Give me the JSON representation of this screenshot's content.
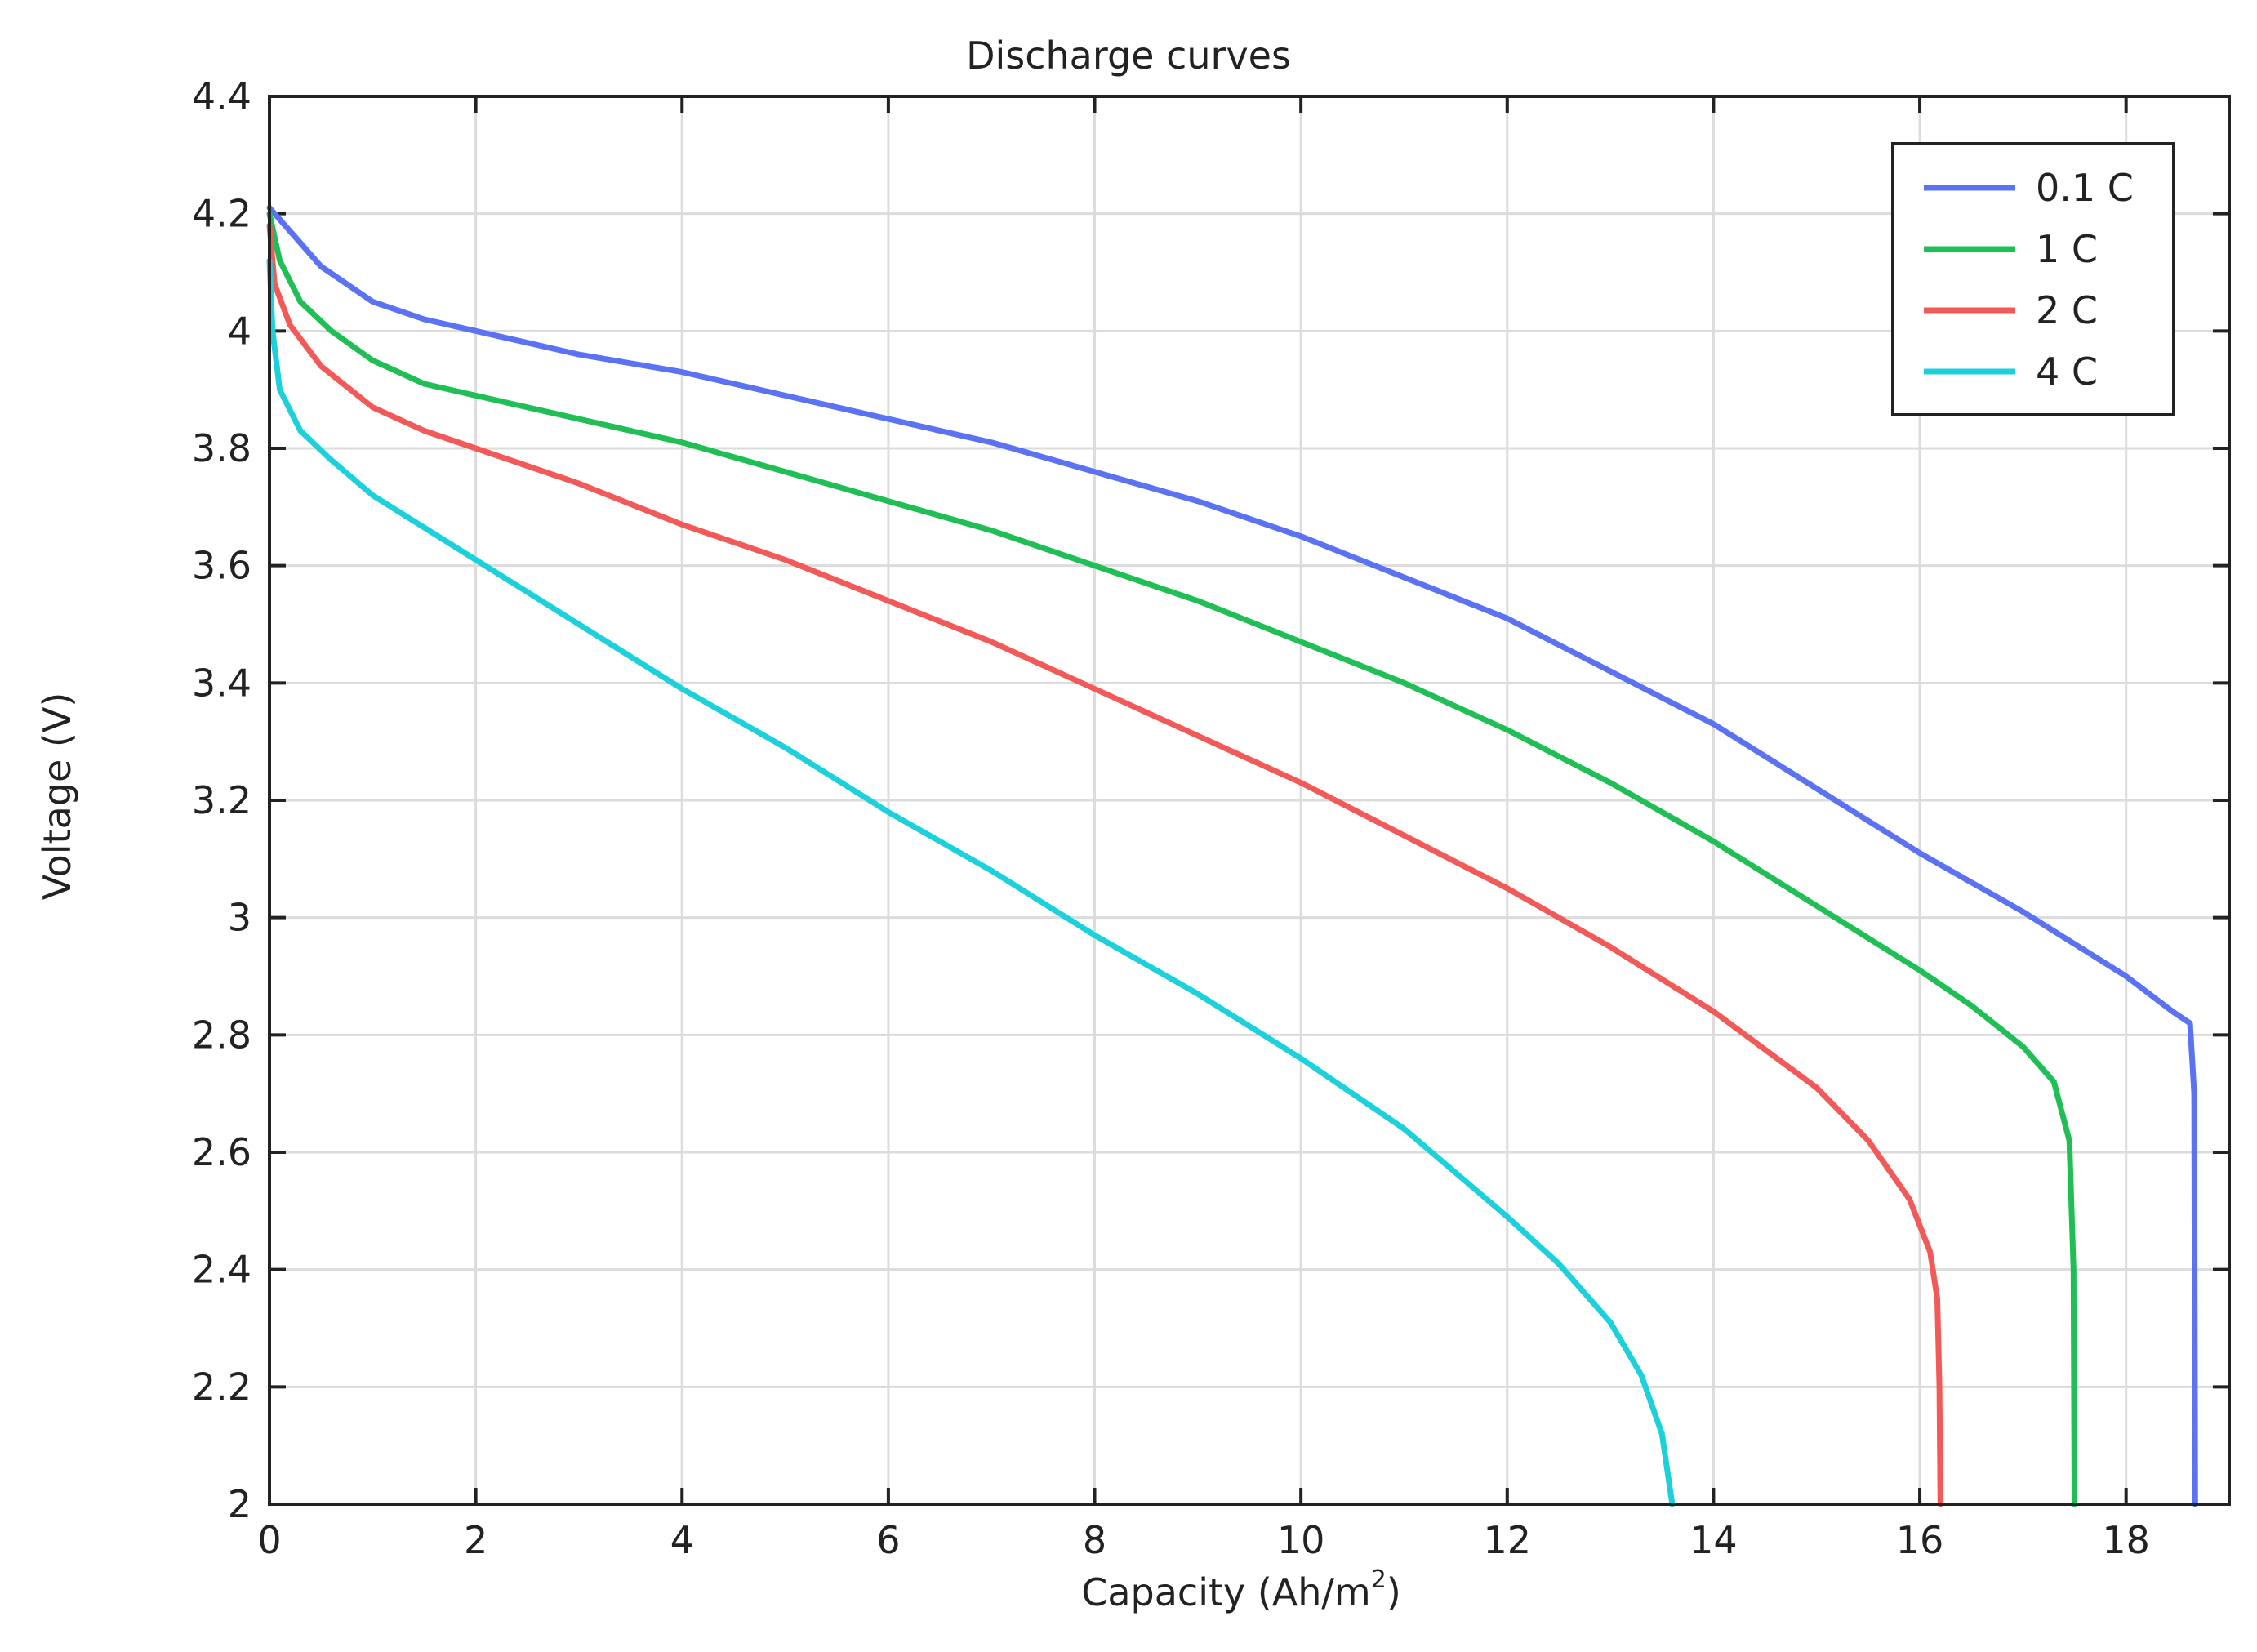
{
  "chart_data": {
    "type": "line",
    "title": "Discharge curves",
    "xlabel": {
      "text": "Capacity (Ah/m",
      "superscript": "2",
      "suffix": ")"
    },
    "ylabel": "Voltage (V)",
    "xlim": [
      0,
      19
    ],
    "ylim": [
      2,
      4.4
    ],
    "x_ticks": [
      0,
      2,
      4,
      6,
      8,
      10,
      12,
      14,
      16,
      18
    ],
    "x_tick_labels": [
      "0",
      "2",
      "4",
      "6",
      "8",
      "10",
      "12",
      "14",
      "16",
      "18"
    ],
    "y_ticks": [
      2,
      2.2,
      2.4,
      2.6,
      2.8,
      3,
      3.2,
      3.4,
      3.6,
      3.8,
      4,
      4.2,
      4.4
    ],
    "y_tick_labels": [
      "2",
      "2.2",
      "2.4",
      "2.6",
      "2.8",
      "3",
      "3.2",
      "3.4",
      "3.6",
      "3.8",
      "4",
      "4.2",
      "4.4"
    ],
    "grid": true,
    "legend_position": "top-right",
    "series": [
      {
        "name": "0.1 C",
        "color": "#5b73f2",
        "points": [
          [
            0,
            4.21
          ],
          [
            0.2,
            4.17
          ],
          [
            0.5,
            4.11
          ],
          [
            1,
            4.05
          ],
          [
            1.5,
            4.02
          ],
          [
            2,
            4.0
          ],
          [
            3,
            3.96
          ],
          [
            4,
            3.93
          ],
          [
            5,
            3.89
          ],
          [
            6,
            3.85
          ],
          [
            7,
            3.81
          ],
          [
            8,
            3.76
          ],
          [
            9,
            3.71
          ],
          [
            10,
            3.65
          ],
          [
            11,
            3.58
          ],
          [
            12,
            3.51
          ],
          [
            13,
            3.42
          ],
          [
            14,
            3.33
          ],
          [
            15,
            3.22
          ],
          [
            16,
            3.11
          ],
          [
            17,
            3.01
          ],
          [
            18,
            2.9
          ],
          [
            18.45,
            2.84
          ],
          [
            18.62,
            2.82
          ],
          [
            18.66,
            2.7
          ],
          [
            18.67,
            2.0
          ]
        ]
      },
      {
        "name": "1 C",
        "color": "#20bf55",
        "points": [
          [
            0,
            4.2
          ],
          [
            0.1,
            4.12
          ],
          [
            0.3,
            4.05
          ],
          [
            0.6,
            4.0
          ],
          [
            1,
            3.95
          ],
          [
            1.5,
            3.91
          ],
          [
            2,
            3.89
          ],
          [
            3,
            3.85
          ],
          [
            4,
            3.81
          ],
          [
            5,
            3.76
          ],
          [
            6,
            3.71
          ],
          [
            7,
            3.66
          ],
          [
            8,
            3.6
          ],
          [
            9,
            3.54
          ],
          [
            10,
            3.47
          ],
          [
            11,
            3.4
          ],
          [
            12,
            3.32
          ],
          [
            13,
            3.23
          ],
          [
            14,
            3.13
          ],
          [
            15,
            3.02
          ],
          [
            16,
            2.91
          ],
          [
            16.5,
            2.85
          ],
          [
            17,
            2.78
          ],
          [
            17.3,
            2.72
          ],
          [
            17.45,
            2.62
          ],
          [
            17.49,
            2.4
          ],
          [
            17.5,
            2.0
          ]
        ]
      },
      {
        "name": "2 C",
        "color": "#f25a5a",
        "points": [
          [
            0,
            4.18
          ],
          [
            0.05,
            4.08
          ],
          [
            0.2,
            4.01
          ],
          [
            0.5,
            3.94
          ],
          [
            1,
            3.87
          ],
          [
            1.5,
            3.83
          ],
          [
            2,
            3.8
          ],
          [
            3,
            3.74
          ],
          [
            4,
            3.67
          ],
          [
            5,
            3.61
          ],
          [
            6,
            3.54
          ],
          [
            7,
            3.47
          ],
          [
            8,
            3.39
          ],
          [
            9,
            3.31
          ],
          [
            10,
            3.23
          ],
          [
            11,
            3.14
          ],
          [
            12,
            3.05
          ],
          [
            13,
            2.95
          ],
          [
            14,
            2.84
          ],
          [
            15,
            2.71
          ],
          [
            15.5,
            2.62
          ],
          [
            15.9,
            2.52
          ],
          [
            16.1,
            2.43
          ],
          [
            16.17,
            2.35
          ],
          [
            16.19,
            2.2
          ],
          [
            16.2,
            2.0
          ]
        ]
      },
      {
        "name": "4 C",
        "color": "#1cd0dc",
        "points": [
          [
            0,
            4.12
          ],
          [
            0.03,
            4.0
          ],
          [
            0.1,
            3.9
          ],
          [
            0.3,
            3.83
          ],
          [
            0.6,
            3.78
          ],
          [
            1,
            3.72
          ],
          [
            2,
            3.61
          ],
          [
            3,
            3.5
          ],
          [
            4,
            3.39
          ],
          [
            5,
            3.29
          ],
          [
            6,
            3.18
          ],
          [
            7,
            3.08
          ],
          [
            8,
            2.97
          ],
          [
            9,
            2.87
          ],
          [
            10,
            2.76
          ],
          [
            11,
            2.64
          ],
          [
            12,
            2.49
          ],
          [
            12.5,
            2.41
          ],
          [
            13,
            2.31
          ],
          [
            13.3,
            2.22
          ],
          [
            13.5,
            2.12
          ],
          [
            13.6,
            2.0
          ]
        ]
      }
    ]
  }
}
